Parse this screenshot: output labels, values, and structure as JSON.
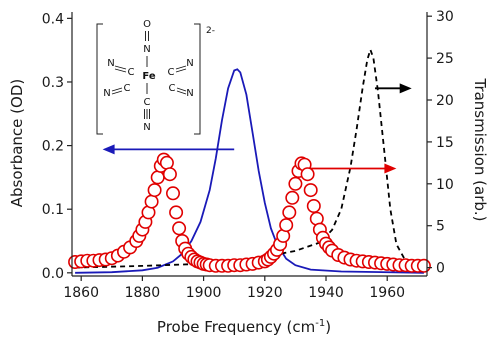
{
  "chart_data": {
    "type": "line",
    "xlabel": "Probe Frequency (cm",
    "xlabel_sup": "-1",
    "xlabel_end": ")",
    "ylabel_left": "Absorbance (OD)",
    "ylabel_right": "Transmission (arb.)",
    "xlim": [
      1857,
      1973
    ],
    "ylim_left": [
      -0.005,
      0.41
    ],
    "ylim_right": [
      -1.0,
      30.5
    ],
    "x_ticks": [
      1860,
      1880,
      1900,
      1920,
      1940,
      1960
    ],
    "y_left_ticks": [
      "0.0",
      "0.1",
      "0.2",
      "0.3",
      "0.4"
    ],
    "y_right_ticks": [
      "0",
      "5",
      "10",
      "15",
      "20",
      "25",
      "30"
    ],
    "grid": false,
    "legend": "none",
    "series": [
      {
        "axis": "left",
        "style": "solid-line",
        "color": "#1a1ab8",
        "points": [
          [
            1858,
            0.0
          ],
          [
            1870,
            0.001
          ],
          [
            1880,
            0.004
          ],
          [
            1885,
            0.008
          ],
          [
            1890,
            0.018
          ],
          [
            1893,
            0.03
          ],
          [
            1896,
            0.05
          ],
          [
            1899,
            0.08
          ],
          [
            1902,
            0.13
          ],
          [
            1904,
            0.18
          ],
          [
            1906,
            0.24
          ],
          [
            1908,
            0.29
          ],
          [
            1910,
            0.318
          ],
          [
            1911,
            0.32
          ],
          [
            1912,
            0.315
          ],
          [
            1914,
            0.28
          ],
          [
            1916,
            0.22
          ],
          [
            1918,
            0.16
          ],
          [
            1920,
            0.11
          ],
          [
            1922,
            0.07
          ],
          [
            1924,
            0.045
          ],
          [
            1927,
            0.022
          ],
          [
            1930,
            0.012
          ],
          [
            1935,
            0.005
          ],
          [
            1945,
            0.002
          ],
          [
            1972,
            0.0
          ]
        ]
      },
      {
        "axis": "right",
        "style": "dashed-line",
        "color": "#000000",
        "points": [
          [
            1858,
            0.0
          ],
          [
            1880,
            0.2
          ],
          [
            1895,
            0.4
          ],
          [
            1910,
            0.8
          ],
          [
            1920,
            1.3
          ],
          [
            1930,
            2.0
          ],
          [
            1938,
            3.0
          ],
          [
            1942,
            4.5
          ],
          [
            1945,
            7.0
          ],
          [
            1948,
            12.0
          ],
          [
            1950,
            16.5
          ],
          [
            1952,
            21.5
          ],
          [
            1953.5,
            24.8
          ],
          [
            1954.5,
            26.0
          ],
          [
            1955.5,
            25.0
          ],
          [
            1957,
            21.0
          ],
          [
            1959,
            14.0
          ],
          [
            1961,
            7.0
          ],
          [
            1963,
            2.8
          ],
          [
            1966,
            0.8
          ],
          [
            1970,
            0.2
          ],
          [
            1972,
            0.1
          ]
        ]
      },
      {
        "axis": "left",
        "style": "open-circles",
        "color": "#e00000",
        "points": [
          [
            1858,
            0.017
          ],
          [
            1860,
            0.018
          ],
          [
            1862,
            0.019
          ],
          [
            1864,
            0.019
          ],
          [
            1866,
            0.02
          ],
          [
            1868,
            0.021
          ],
          [
            1870,
            0.023
          ],
          [
            1872,
            0.027
          ],
          [
            1874,
            0.033
          ],
          [
            1876,
            0.04
          ],
          [
            1878,
            0.05
          ],
          [
            1879,
            0.058
          ],
          [
            1880,
            0.068
          ],
          [
            1881,
            0.08
          ],
          [
            1882,
            0.095
          ],
          [
            1883,
            0.112
          ],
          [
            1884,
            0.13
          ],
          [
            1885,
            0.15
          ],
          [
            1886,
            0.168
          ],
          [
            1887,
            0.178
          ],
          [
            1888,
            0.173
          ],
          [
            1889,
            0.155
          ],
          [
            1890,
            0.125
          ],
          [
            1891,
            0.095
          ],
          [
            1892,
            0.07
          ],
          [
            1893,
            0.05
          ],
          [
            1894,
            0.038
          ],
          [
            1895,
            0.03
          ],
          [
            1896,
            0.025
          ],
          [
            1897,
            0.021
          ],
          [
            1898,
            0.018
          ],
          [
            1899,
            0.016
          ],
          [
            1900,
            0.014
          ],
          [
            1901,
            0.013
          ],
          [
            1902,
            0.012
          ],
          [
            1904,
            0.011
          ],
          [
            1906,
            0.011
          ],
          [
            1908,
            0.011
          ],
          [
            1910,
            0.012
          ],
          [
            1912,
            0.012
          ],
          [
            1914,
            0.013
          ],
          [
            1916,
            0.014
          ],
          [
            1918,
            0.016
          ],
          [
            1920,
            0.018
          ],
          [
            1921,
            0.021
          ],
          [
            1922,
            0.025
          ],
          [
            1923,
            0.03
          ],
          [
            1924,
            0.036
          ],
          [
            1925,
            0.045
          ],
          [
            1926,
            0.058
          ],
          [
            1927,
            0.075
          ],
          [
            1928,
            0.095
          ],
          [
            1929,
            0.118
          ],
          [
            1930,
            0.14
          ],
          [
            1931,
            0.16
          ],
          [
            1932,
            0.172
          ],
          [
            1933,
            0.17
          ],
          [
            1934,
            0.155
          ],
          [
            1935,
            0.13
          ],
          [
            1936,
            0.105
          ],
          [
            1937,
            0.085
          ],
          [
            1938,
            0.068
          ],
          [
            1939,
            0.055
          ],
          [
            1940,
            0.046
          ],
          [
            1941,
            0.04
          ],
          [
            1942,
            0.035
          ],
          [
            1944,
            0.028
          ],
          [
            1946,
            0.024
          ],
          [
            1948,
            0.021
          ],
          [
            1950,
            0.019
          ],
          [
            1952,
            0.018
          ],
          [
            1954,
            0.017
          ],
          [
            1956,
            0.016
          ],
          [
            1958,
            0.015
          ],
          [
            1960,
            0.014
          ],
          [
            1962,
            0.013
          ],
          [
            1964,
            0.012
          ],
          [
            1966,
            0.012
          ],
          [
            1968,
            0.011
          ],
          [
            1970,
            0.011
          ],
          [
            1972,
            0.011
          ]
        ]
      }
    ],
    "annotations": {
      "left_arrow": {
        "color": "#1a1ab8",
        "from": [
          1910,
          0.194
        ],
        "to": [
          1867,
          0.194
        ]
      },
      "right_arrow_red": {
        "color": "#e00000",
        "from": [
          1935,
          0.164
        ],
        "to": [
          1963,
          0.164
        ]
      },
      "right_arrow_black": {
        "color": "#000000",
        "from": [
          1956,
          0.29
        ],
        "to": [
          1968,
          0.29
        ]
      },
      "molecule": {
        "charge": "2-",
        "center": "Fe",
        "top_atoms": [
          "O",
          "N"
        ],
        "bottom_atoms": [
          "C",
          "N"
        ],
        "left_upper": "N",
        "left_upper_c": "C",
        "left_lower": "N",
        "left_lower_c": "C",
        "right_upper_c": "C",
        "right_upper": "N",
        "right_lower_c": "C",
        "right_lower": "N"
      }
    }
  }
}
